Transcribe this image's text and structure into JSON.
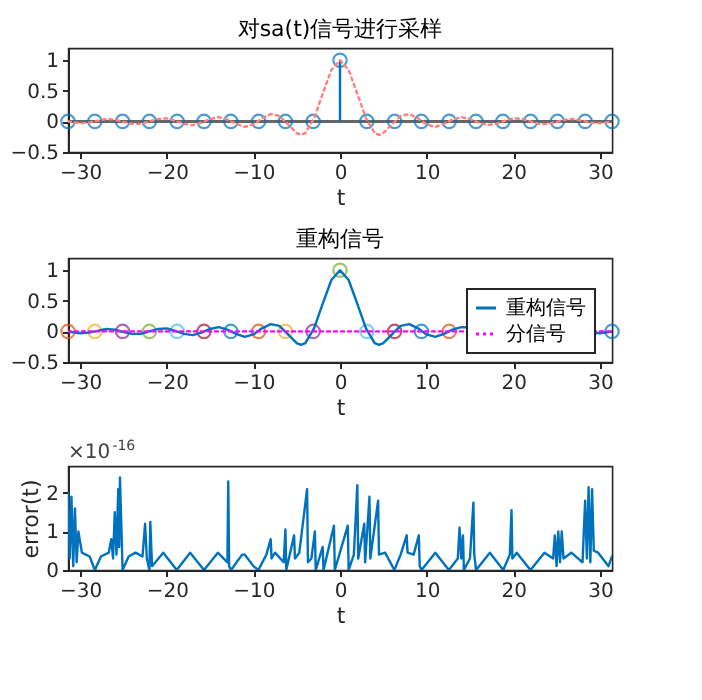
{
  "chart_data": [
    {
      "type": "line",
      "title": "对sa(t)信号进行采样",
      "xlabel": "t",
      "xlim": [
        -31.4,
        31.4
      ],
      "xticks": [
        -30,
        -20,
        -10,
        0,
        10,
        20,
        30
      ],
      "ylim": [
        -0.5,
        1.2
      ],
      "yticks": [
        -0.5,
        0,
        0.5,
        1
      ],
      "grid": false,
      "legend": false,
      "ref_lines": [
        {
          "axis": "y",
          "value": 0,
          "color": "#666666"
        }
      ],
      "series": [
        {
          "color": "#ff7f7f",
          "line_style": "dotted",
          "x": [
            -31.4,
            -31,
            -30,
            -29,
            -28,
            -27,
            -26,
            -25,
            -24,
            -23,
            -22,
            -21,
            -20,
            -19,
            -18,
            -17,
            -16,
            -15,
            -14,
            -13,
            -12,
            -11,
            -10,
            -9,
            -8,
            -7,
            -6,
            -5,
            -4.5,
            -4,
            -3,
            -2,
            -1,
            0,
            1,
            2,
            3,
            4,
            4.5,
            5,
            6,
            7,
            8,
            9,
            10,
            11,
            12,
            13,
            14,
            15,
            16,
            17,
            18,
            19,
            20,
            21,
            22,
            23,
            24,
            25,
            26,
            27,
            28,
            29,
            30,
            31,
            31.4
          ],
          "values": [
            0,
            -0.01,
            -0.03,
            -0.02,
            0.01,
            0.04,
            0.03,
            -0.01,
            -0.04,
            -0.04,
            0,
            0.04,
            0.05,
            0.01,
            -0.04,
            -0.06,
            -0.02,
            0.04,
            0.07,
            0.03,
            -0.04,
            -0.09,
            -0.05,
            0.05,
            0.12,
            0.09,
            -0.05,
            -0.19,
            -0.22,
            -0.19,
            0.05,
            0.45,
            0.84,
            1,
            0.84,
            0.45,
            0.05,
            -0.19,
            -0.22,
            -0.19,
            -0.05,
            0.09,
            0.12,
            0.05,
            -0.05,
            -0.09,
            -0.04,
            0.03,
            0.07,
            0.04,
            -0.02,
            -0.06,
            -0.04,
            0.01,
            0.05,
            0.04,
            0,
            -0.04,
            -0.04,
            -0.01,
            0.03,
            0.04,
            0.01,
            -0.02,
            -0.03,
            -0.01,
            0
          ]
        },
        {
          "type": "lollipop",
          "color": "#0072bd",
          "marker": "circle",
          "x": [
            -31.4,
            -28.3,
            -25.1,
            -22.0,
            -18.8,
            -15.7,
            -12.6,
            -9.4,
            -6.3,
            -3.1,
            0,
            3.1,
            6.3,
            9.4,
            12.6,
            15.7,
            18.8,
            22.0,
            25.1,
            28.3,
            31.4
          ],
          "values": [
            0,
            0,
            0,
            0,
            0,
            0,
            0,
            0,
            0,
            0,
            1,
            0,
            0,
            0,
            0,
            0,
            0,
            0,
            0,
            0,
            0
          ]
        }
      ]
    },
    {
      "type": "line",
      "title": "重构信号",
      "xlabel": "t",
      "xlim": [
        -31.4,
        31.4
      ],
      "xticks": [
        -30,
        -20,
        -10,
        0,
        10,
        20,
        30
      ],
      "ylim": [
        -0.5,
        1.2
      ],
      "yticks": [
        -0.5,
        0,
        0.5,
        1
      ],
      "grid": false,
      "legend": "right",
      "series": [
        {
          "name": "重构信号",
          "color": "#0072bd",
          "line_style": "solid",
          "x": [
            -31.4,
            -31,
            -30,
            -29,
            -28,
            -27,
            -26,
            -25,
            -24,
            -23,
            -22,
            -21,
            -20,
            -19,
            -18,
            -17,
            -16,
            -15,
            -14,
            -13,
            -12,
            -11,
            -10,
            -9,
            -8,
            -7,
            -6,
            -5,
            -4.5,
            -4,
            -3,
            -2,
            -1,
            0,
            1,
            2,
            3,
            4,
            4.5,
            5,
            6,
            7,
            8,
            9,
            10,
            11,
            12,
            13,
            14,
            15,
            16,
            17,
            18,
            19,
            20,
            21,
            22,
            23,
            24,
            25,
            26,
            27,
            28,
            29,
            30,
            31,
            31.4
          ],
          "values": [
            0,
            -0.01,
            -0.03,
            -0.02,
            0.01,
            0.04,
            0.03,
            -0.01,
            -0.04,
            -0.04,
            0,
            0.04,
            0.05,
            0.01,
            -0.04,
            -0.06,
            -0.02,
            0.04,
            0.07,
            0.03,
            -0.04,
            -0.09,
            -0.05,
            0.05,
            0.12,
            0.09,
            -0.05,
            -0.19,
            -0.22,
            -0.19,
            0.05,
            0.45,
            0.84,
            1,
            0.84,
            0.45,
            0.05,
            -0.19,
            -0.22,
            -0.19,
            -0.05,
            0.09,
            0.12,
            0.05,
            -0.05,
            -0.09,
            -0.04,
            0.03,
            0.07,
            null,
            null,
            null,
            null,
            null,
            null,
            null,
            null,
            null,
            null,
            null,
            null,
            null,
            null,
            null,
            -0.03,
            -0.01,
            0
          ]
        },
        {
          "name": "分信号",
          "color": "#ff00ff",
          "line_style": "dotted",
          "x": [
            -31.4,
            0,
            14,
            20,
            30,
            31.4
          ],
          "values": [
            0,
            0,
            0,
            null,
            0,
            0
          ]
        },
        {
          "type": "scatter",
          "marker": "circle",
          "x": [
            -31.4,
            -28.3,
            -25.1,
            -22.0,
            -18.8,
            -15.7,
            -12.6,
            -9.4,
            -6.3,
            -3.1,
            0,
            3.1,
            6.3,
            9.4,
            12.6,
            15.7,
            18.8,
            22.0,
            25.1,
            28.3,
            31.4
          ],
          "values": [
            0,
            0,
            0,
            0,
            0,
            0,
            0,
            0,
            0,
            0,
            1,
            0,
            0,
            0,
            0,
            null,
            null,
            null,
            null,
            null,
            0
          ],
          "colors": [
            "#d95319",
            "#edb120",
            "#7e2f8e",
            "#77ac30",
            "#4dbeee",
            "#a2142f",
            "#0072bd",
            "#d95319",
            "#edb120",
            "#7e2f8e",
            "#77ac30",
            "#4dbeee",
            "#a2142f",
            "#0072bd",
            "#d95319",
            "#edb120",
            "#7e2f8e",
            "#77ac30",
            "#4dbeee",
            "#a2142f",
            "#0072bd"
          ]
        }
      ]
    },
    {
      "type": "line",
      "xlabel": "t",
      "ylabel": "error(t)",
      "xlim": [
        -31.4,
        31.4
      ],
      "xticks": [
        -30,
        -20,
        -10,
        0,
        10,
        20,
        30
      ],
      "ylim": [
        0,
        2.7
      ],
      "yticks": [
        0,
        1,
        2
      ],
      "grid": false,
      "legend": false,
      "annotations": [
        "×10$^{-16}$"
      ],
      "series": [
        {
          "color": "#0072bd",
          "line_style": "solid",
          "x": [
            -31.4,
            -31.2,
            -31.0,
            -30.8,
            -30.6,
            -30.4,
            -30.2,
            -29.8,
            -28.9,
            -28.3,
            -27.6,
            -26.7,
            -26.4,
            -26.2,
            -26.0,
            -25.8,
            -25.6,
            -25.5,
            -25.4,
            -25.1,
            -24.4,
            -23.6,
            -22.8,
            -22.5,
            -22.3,
            -22.0,
            -21.9,
            -21.7,
            -20.4,
            -18.85,
            -17.3,
            -15.7,
            -14.1,
            -13.0,
            -12.9,
            -12.8,
            -12.57,
            -11.3,
            -11.0,
            -10.0,
            -9.42,
            -8.5,
            -8.0,
            -7.9,
            -7.5,
            -6.5,
            -6.3,
            -6.2,
            -5.3,
            -5.2,
            -4.7,
            -3.8,
            -3.7,
            -3.3,
            -2.9,
            -2.8,
            -2.0,
            -1.9,
            -0.7,
            -0.6,
            0.9,
            1.0,
            1.6,
            2.0,
            2.1,
            2.8,
            2.9,
            3.4,
            3.5,
            4.4,
            4.5,
            5.2,
            6.28,
            7.0,
            7.7,
            7.8,
            8.5,
            9.1,
            9.2,
            9.42,
            11.0,
            12.57,
            13.6,
            13.8,
            14.0,
            14.2,
            14.3,
            15.0,
            15.4,
            15.5,
            15.71,
            17.3,
            18.85,
            19.6,
            19.8,
            19.9,
            20.4,
            21.99,
            23.6,
            24.6,
            24.8,
            25.0,
            25.2,
            25.4,
            25.6,
            25.8,
            26.7,
            28.0,
            28.3,
            28.5,
            28.7,
            28.9,
            29.1,
            29.3,
            29.8,
            31.0,
            31.4
          ],
          "values": [
            2.0,
            0.3,
            1.9,
            0.1,
            1.6,
            0.2,
            1.0,
            0.45,
            0.35,
            0,
            0.35,
            0.45,
            0.8,
            0.3,
            1.5,
            0.4,
            2.1,
            0.6,
            2.4,
            0,
            0.35,
            0.45,
            0.35,
            1.2,
            0.3,
            0,
            1.25,
            0.1,
            0.45,
            0,
            0.45,
            0,
            0.45,
            0.2,
            2.3,
            0.1,
            0,
            0.4,
            0.4,
            0.1,
            0,
            0.4,
            0.8,
            0.3,
            0.45,
            0.2,
            1.05,
            0,
            0.9,
            0.3,
            0.45,
            2.1,
            0.2,
            0.3,
            1.0,
            0,
            0.6,
            0,
            1.15,
            0,
            1.15,
            0,
            0.4,
            2.2,
            0.3,
            1.2,
            0.2,
            1.9,
            0.3,
            1.8,
            0.4,
            0.45,
            0,
            0.4,
            0.9,
            0.45,
            0.4,
            0.9,
            0.1,
            0,
            0.45,
            0,
            0.3,
            1.1,
            0.3,
            0.9,
            0,
            0.3,
            1.75,
            0.4,
            0,
            0.45,
            0,
            0.4,
            1.55,
            0.3,
            0.45,
            0,
            0.45,
            0.3,
            0.9,
            0.1,
            1.0,
            0.2,
            1.0,
            0.3,
            0.45,
            0.2,
            1.8,
            0.3,
            2.15,
            0.2,
            2.1,
            0.5,
            0.45,
            0.1,
            0.35
          ]
        }
      ]
    }
  ]
}
